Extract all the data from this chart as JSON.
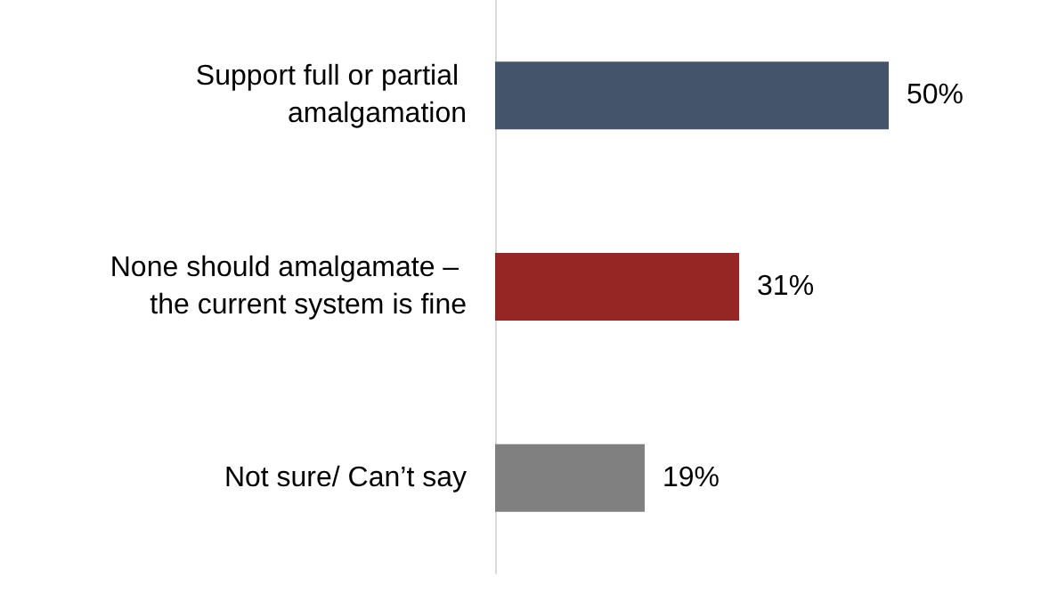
{
  "chart_data": {
    "type": "bar",
    "orientation": "horizontal",
    "categories": [
      "Support full or partial amalgamation",
      "None should amalgamate – the current system is fine",
      "Not sure/ Can’t say"
    ],
    "values": [
      50,
      31,
      19
    ],
    "colors": [
      "#44546a",
      "#952623",
      "#808080"
    ],
    "value_labels": [
      "50%",
      "31%",
      "19%"
    ]
  }
}
